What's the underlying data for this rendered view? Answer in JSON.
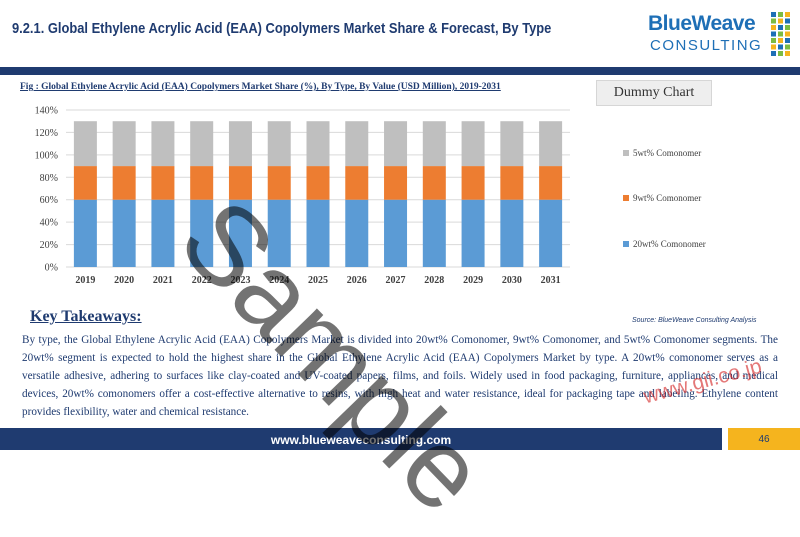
{
  "header": {
    "title": "9.2.1. Global Ethylene Acrylic Acid (EAA) Copolymers Market Share & Forecast, By Type"
  },
  "logo": {
    "main": "BlueWeave",
    "sub": "CONSULTING",
    "dot_colors": [
      "#1e6fb6",
      "#7dbb42",
      "#f5b41e"
    ]
  },
  "figure": {
    "caption": "Fig : Global Ethylene Acrylic Acid (EAA) Copolymers Market Share (%), By Type, By Value (USD Million), 2019-2031",
    "dummy_label": "Dummy Chart",
    "source": "Source: BlueWeave Consulting Analysis"
  },
  "chart_data": {
    "type": "bar",
    "stacked": true,
    "categories": [
      "2019",
      "2020",
      "2021",
      "2022",
      "2023",
      "2024",
      "2025",
      "2026",
      "2027",
      "2028",
      "2029",
      "2030",
      "2031"
    ],
    "series": [
      {
        "name": "20wt% Comonomer",
        "color": "#5b9bd5",
        "values": [
          60,
          60,
          60,
          60,
          60,
          60,
          60,
          60,
          60,
          60,
          60,
          60,
          60
        ]
      },
      {
        "name": "9wt% Comonomer",
        "color": "#ed7d31",
        "values": [
          30,
          30,
          30,
          30,
          30,
          30,
          30,
          30,
          30,
          30,
          30,
          30,
          30
        ]
      },
      {
        "name": "5wt% Comonomer",
        "color": "#bfbfbf",
        "values": [
          40,
          40,
          40,
          40,
          40,
          40,
          40,
          40,
          40,
          40,
          40,
          40,
          40
        ]
      }
    ],
    "yticks": [
      "0%",
      "20%",
      "40%",
      "60%",
      "80%",
      "100%",
      "120%",
      "140%"
    ],
    "ylim": [
      0,
      140
    ],
    "grid": true,
    "legend_position": "right"
  },
  "key_takeaways": {
    "title": "Key Takeaways:",
    "body": "By type, the Global Ethylene Acrylic Acid (EAA) Copolymers Market is divided into 20wt% Comonomer, 9wt% Comonomer, and 5wt% Comonomer segments. The 20wt% segment is expected to hold the highest share in the Global Ethylene Acrylic Acid (EAA) Copolymers Market by type. A 20wt% comonomer serves as a versatile adhesive, adhering to surfaces like clay-coated and UV-coated papers, films, and foils. Widely used in food packaging, furniture, appliances, and medical devices, 20wt% comonomers offer a cost-effective alternative to resins, with high heat and water resistance, ideal for packaging tape and labeling. Ethylene content provides flexibility, water and chemical resistance."
  },
  "footer": {
    "url": "www.blueweaveconsulting.com",
    "page_number": "46"
  },
  "watermark": {
    "text": "Sample",
    "gii": "www.gii.co.jp"
  }
}
